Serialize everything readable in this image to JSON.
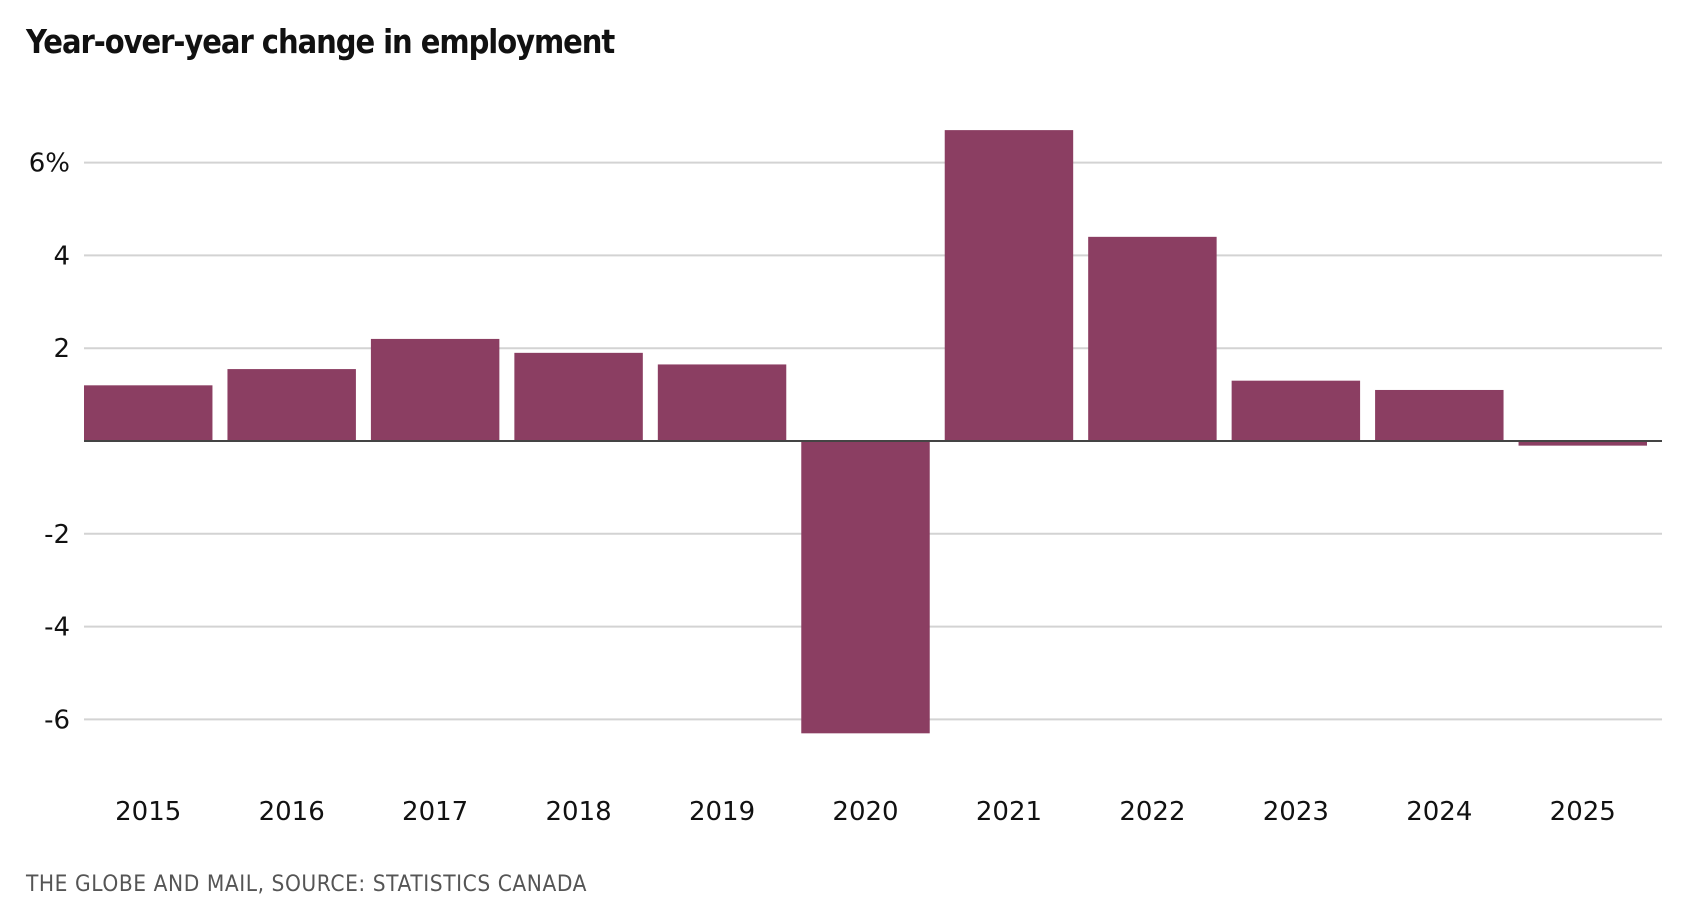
{
  "colors": {
    "bar": "#8b3e62",
    "grid": "#d3d3d3",
    "zero_line": "#444444",
    "text": "#111111",
    "source_text": "#555555"
  },
  "chart_data": {
    "type": "bar",
    "title": "Year-over-year change in employment",
    "xlabel": "",
    "ylabel": "",
    "categories": [
      "2015",
      "2016",
      "2017",
      "2018",
      "2019",
      "2020",
      "2021",
      "2022",
      "2023",
      "2024",
      "2025"
    ],
    "values": [
      1.2,
      1.55,
      2.2,
      1.9,
      1.65,
      -6.3,
      6.7,
      4.4,
      1.3,
      1.1,
      -0.1
    ],
    "ylim": [
      -7.5,
      7.3
    ],
    "yticks": [
      6,
      4,
      2,
      -2,
      -4,
      -6
    ],
    "ytick_labels": [
      "6%",
      "4",
      "2",
      "-2",
      "-4",
      "-6"
    ],
    "grid": true,
    "legend": null,
    "source": "THE GLOBE AND MAIL, SOURCE: STATISTICS CANADA"
  }
}
